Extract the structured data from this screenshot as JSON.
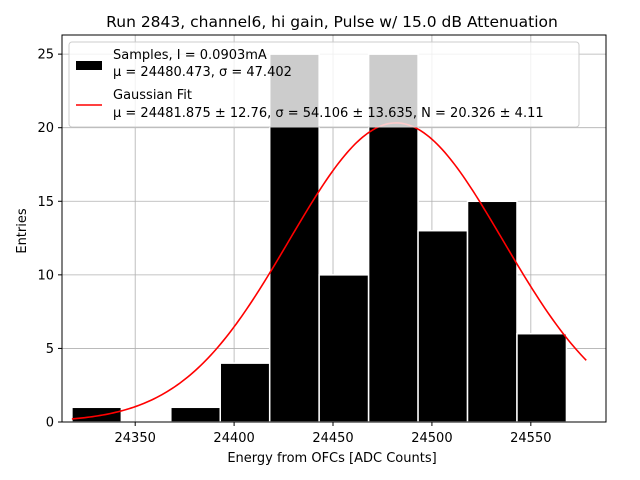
{
  "chart_data": {
    "type": "bar",
    "title": "Run 2843, channel6, hi gain, Pulse w/ 15.0 dB Attenuation",
    "xlabel": "Energy from OFCs [ADC Counts]",
    "ylabel": "Entries",
    "xlim": [
      24313,
      24588
    ],
    "ylim": [
      0,
      26.3
    ],
    "xticks": [
      24350,
      24400,
      24450,
      24500,
      24550
    ],
    "yticks": [
      0,
      5,
      10,
      15,
      20,
      25
    ],
    "grid": true,
    "bins": {
      "edges": [
        24318,
        24343,
        24368,
        24393,
        24418,
        24443,
        24468,
        24493,
        24518,
        24543,
        24568
      ],
      "counts": [
        1,
        0,
        1,
        4,
        25,
        10,
        25,
        13,
        15,
        6
      ],
      "bar_color": "#000000",
      "edge_color": "#ffffff"
    },
    "fit": {
      "mu": 24481.875,
      "sigma": 54.106,
      "N": 20.326,
      "x_range": [
        24318,
        24578
      ],
      "color": "#ff0000"
    },
    "legend": {
      "placement": "top-left",
      "entries": [
        {
          "line1": "Samples, I = 0.0903mA",
          "line2": "μ = 24480.473, σ = 47.402",
          "swatch": "box"
        },
        {
          "line1": "Gaussian Fit",
          "line2": "μ = 24481.875 ± 12.76, σ = 54.106 ± 13.635, N = 20.326 ± 4.11",
          "swatch": "line"
        }
      ]
    }
  }
}
